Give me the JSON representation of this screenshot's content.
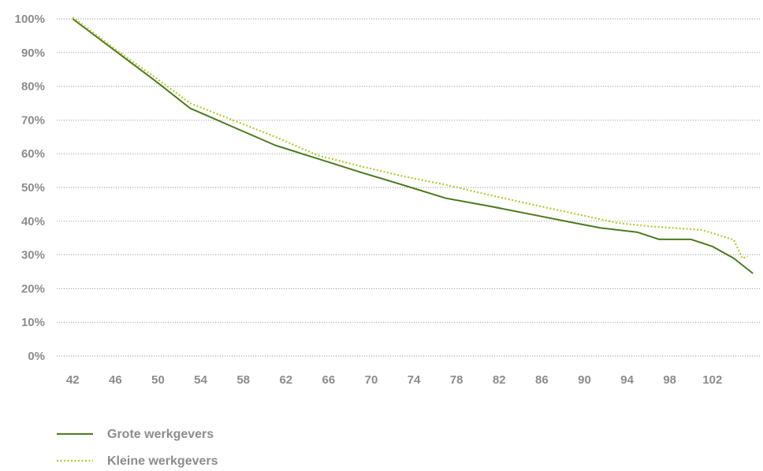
{
  "chart_data": {
    "type": "line",
    "title": "",
    "xlabel": "",
    "ylabel": "",
    "x_ticks": [
      "42",
      "46",
      "50",
      "54",
      "58",
      "62",
      "66",
      "70",
      "74",
      "78",
      "82",
      "86",
      "90",
      "94",
      "98",
      "102"
    ],
    "y_ticks": [
      "0%",
      "10%",
      "20%",
      "30%",
      "40%",
      "50%",
      "60%",
      "70%",
      "80%",
      "90%",
      "100%"
    ],
    "xlim": [
      40.5,
      106.6
    ],
    "ylim": [
      0,
      100
    ],
    "grid": true,
    "legend_position": "bottom-left",
    "series": [
      {
        "name": "Grote werkgevers",
        "color": "#4a7a1e",
        "style": "solid",
        "points": [
          [
            42,
            100
          ],
          [
            46,
            90.5
          ],
          [
            50,
            81
          ],
          [
            53,
            73.5
          ],
          [
            57,
            68
          ],
          [
            61,
            62.5
          ],
          [
            65,
            58.5
          ],
          [
            69,
            54.5
          ],
          [
            73,
            50.7
          ],
          [
            77,
            46.8
          ],
          [
            81,
            44.5
          ],
          [
            85,
            42
          ],
          [
            89,
            39.5
          ],
          [
            91.5,
            38
          ],
          [
            95,
            36.7
          ],
          [
            97,
            34.6
          ],
          [
            100,
            34.6
          ],
          [
            102,
            32.5
          ],
          [
            104,
            29
          ],
          [
            105.8,
            24.5
          ]
        ]
      },
      {
        "name": "Kleine werkgevers",
        "color": "#b6c92c",
        "style": "dotted",
        "points": [
          [
            42,
            100.5
          ],
          [
            46,
            91
          ],
          [
            50,
            82
          ],
          [
            53,
            75
          ],
          [
            57,
            70
          ],
          [
            61,
            65
          ],
          [
            65,
            59.5
          ],
          [
            69,
            56.3
          ],
          [
            73,
            53.3
          ],
          [
            77,
            50.8
          ],
          [
            81,
            47.8
          ],
          [
            85,
            45
          ],
          [
            89,
            42.3
          ],
          [
            93,
            39.5
          ],
          [
            96,
            38.5
          ],
          [
            101,
            37.4
          ],
          [
            104,
            34.5
          ],
          [
            104.8,
            29
          ],
          [
            105.3,
            29.5
          ]
        ]
      }
    ]
  }
}
